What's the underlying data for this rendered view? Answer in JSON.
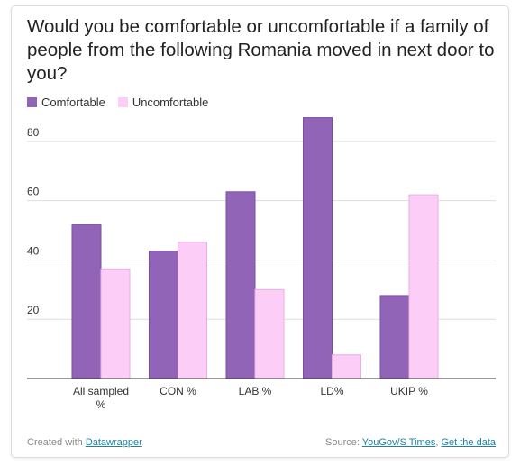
{
  "title": "Would you be comfortable or uncomfortable if a family of people from the following Romania moved in next door to you?",
  "footer": {
    "created_prefix": "Created with ",
    "created_link": "Datawrapper",
    "source_prefix": "Source: ",
    "source_link": "YouGov/S Times",
    "separator": ", ",
    "data_link": "Get the data"
  },
  "colors": {
    "comfortable": "#9164b8",
    "comfortable_stroke": "#7a4fa3",
    "uncomfortable": "#fbcdf7",
    "uncomfortable_stroke": "#e8aee3",
    "grid": "#dddddd",
    "axis": "#333333",
    "text": "#333333"
  },
  "chart_data": {
    "type": "bar",
    "categories": [
      "All sampled %",
      "CON %",
      "LAB %",
      "LD%",
      "UKIP %"
    ],
    "series": [
      {
        "name": "Comfortable",
        "values": [
          52,
          43,
          63,
          88,
          28
        ]
      },
      {
        "name": "Uncomfortable",
        "values": [
          37,
          46,
          30,
          8,
          62
        ]
      }
    ],
    "title": "Would you be comfortable or uncomfortable if a family of people from the following Romania moved in next door to you?",
    "xlabel": "",
    "ylabel": "",
    "ylim": [
      0,
      90
    ],
    "yticks": [
      20,
      40,
      60,
      80
    ],
    "grid": true,
    "legend": "top-left"
  }
}
